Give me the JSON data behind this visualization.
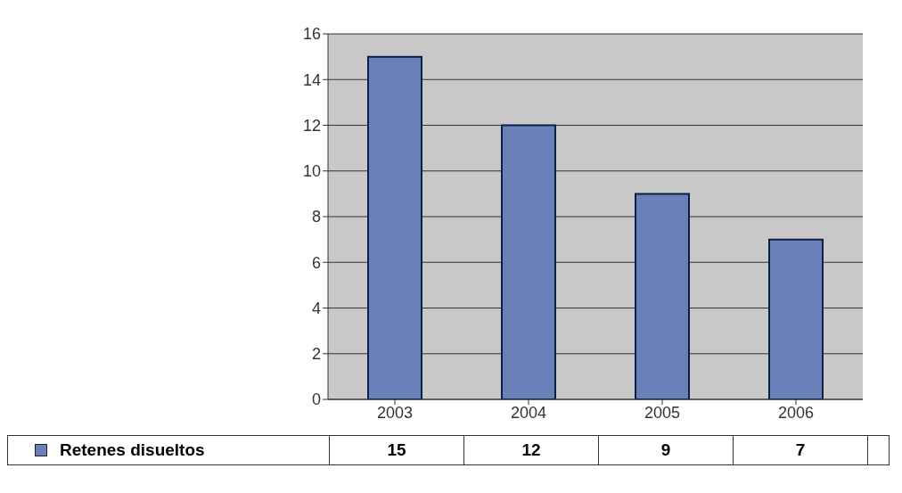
{
  "chart_data": {
    "type": "bar",
    "categories": [
      "2003",
      "2004",
      "2005",
      "2006"
    ],
    "series": [
      {
        "name": "Retenes disueltos",
        "color": "#6a80b8",
        "values": [
          15,
          12,
          9,
          7
        ]
      }
    ],
    "ylim": [
      0,
      16
    ],
    "yticks": [
      0,
      2,
      4,
      6,
      8,
      10,
      12,
      14,
      16
    ],
    "grid": "y",
    "legend": "bottom left",
    "data_labels": true
  }
}
